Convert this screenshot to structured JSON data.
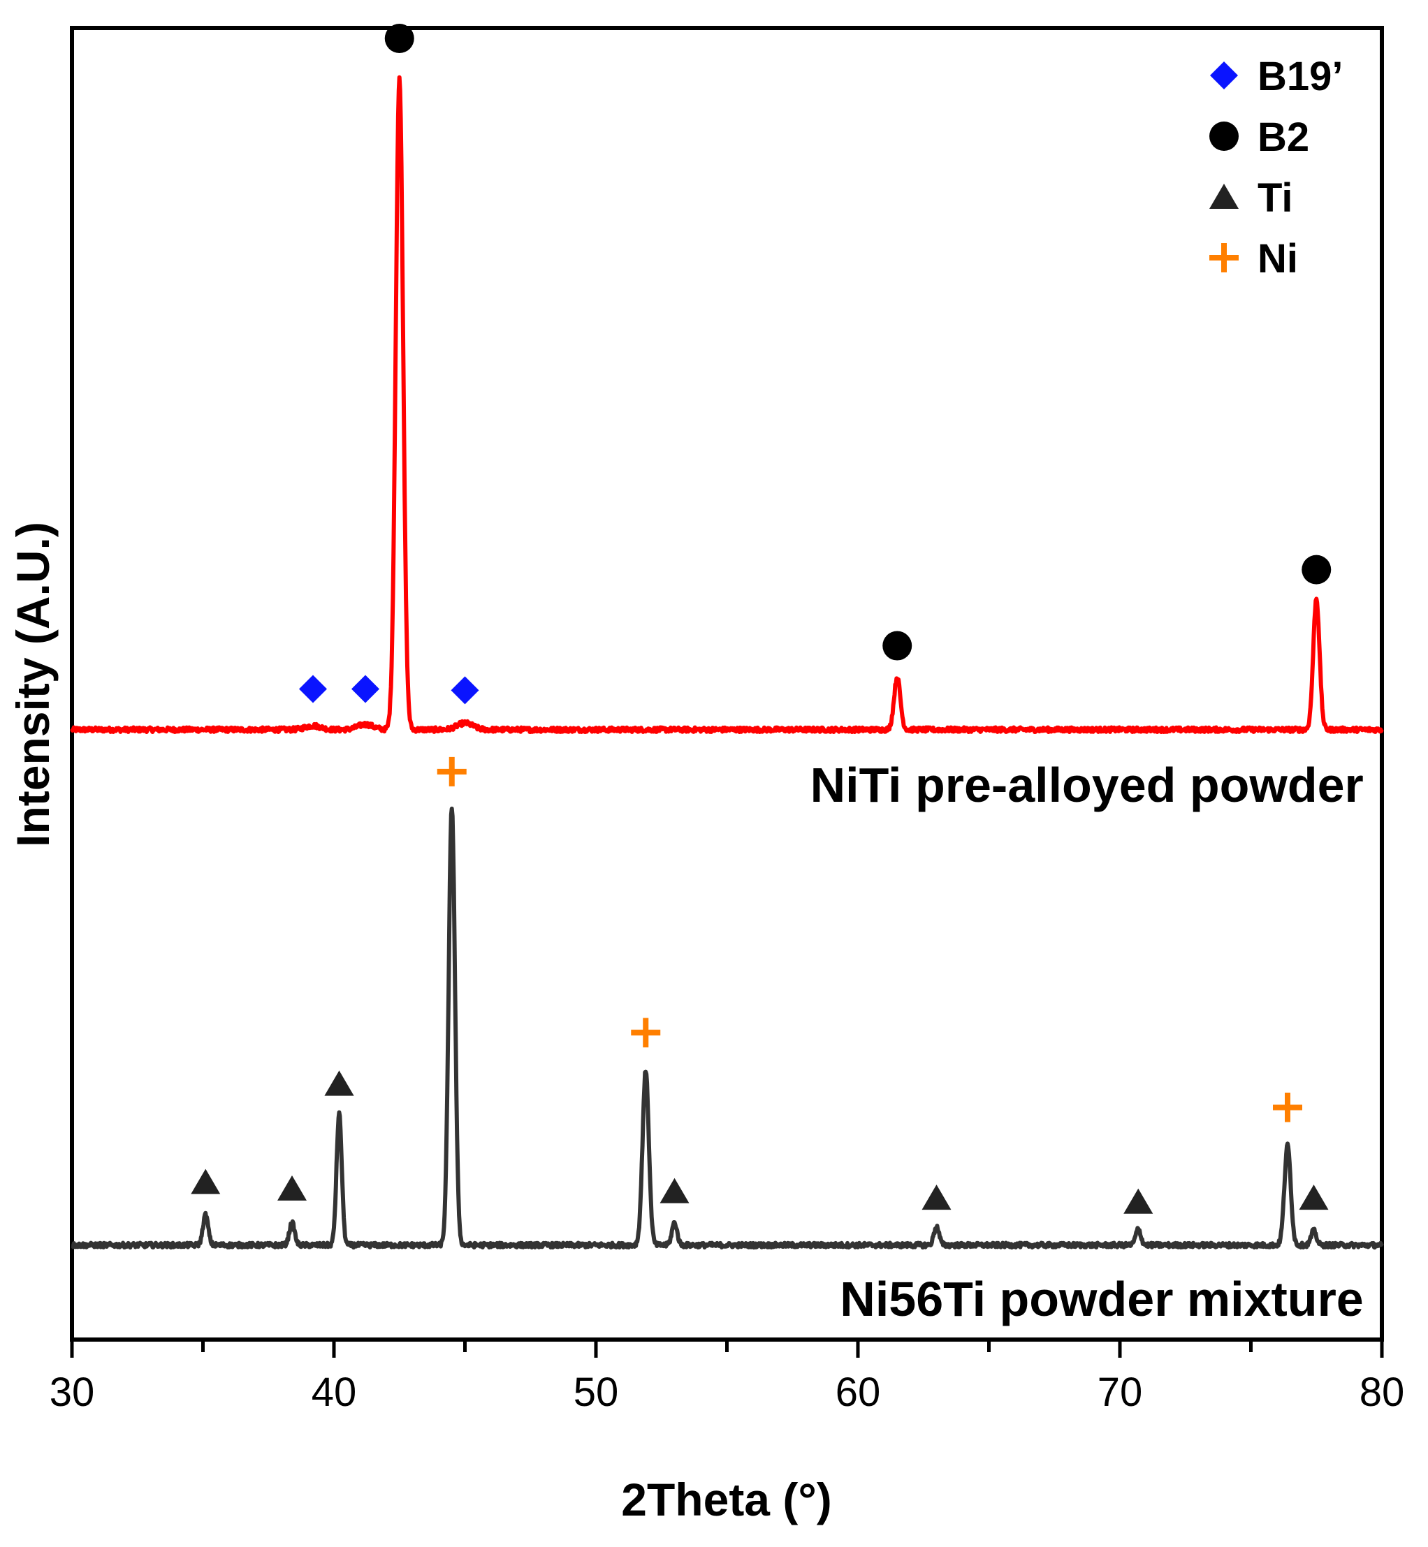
{
  "chart_data": {
    "type": "line",
    "title": "",
    "xlabel": "2Theta (°)",
    "ylabel": "Intensity (A.U.)",
    "xlim": [
      30,
      80
    ],
    "ylim": [
      0,
      100
    ],
    "x_ticks": [
      30,
      40,
      50,
      60,
      70,
      80
    ],
    "x_tick_labels": [
      "30",
      "40",
      "50",
      "60",
      "70",
      "80"
    ],
    "x_minor_ticks": [
      35,
      45,
      55,
      65,
      75
    ],
    "series": [
      {
        "name": "NiTi pre-alloyed powder",
        "color": "#ff0000",
        "baseline": 46.5,
        "peaks": [
          {
            "x": 39.2,
            "h": 0.3,
            "w": 0.3
          },
          {
            "x": 41.2,
            "h": 0.4,
            "w": 0.3
          },
          {
            "x": 42.5,
            "h": 49.7,
            "w": 0.14
          },
          {
            "x": 45.0,
            "h": 0.5,
            "w": 0.3
          },
          {
            "x": 61.5,
            "h": 4.0,
            "w": 0.12
          },
          {
            "x": 77.5,
            "h": 10.0,
            "w": 0.12
          }
        ]
      },
      {
        "name": "Ni56Ti powder mixture",
        "color": "#333333",
        "baseline": 7.2,
        "peaks": [
          {
            "x": 35.1,
            "h": 2.3,
            "w": 0.1
          },
          {
            "x": 38.4,
            "h": 1.7,
            "w": 0.1
          },
          {
            "x": 40.2,
            "h": 10.0,
            "w": 0.1
          },
          {
            "x": 44.5,
            "h": 33.4,
            "w": 0.12
          },
          {
            "x": 51.9,
            "h": 13.3,
            "w": 0.12
          },
          {
            "x": 53.0,
            "h": 1.7,
            "w": 0.1
          },
          {
            "x": 63.0,
            "h": 1.4,
            "w": 0.1
          },
          {
            "x": 70.7,
            "h": 1.2,
            "w": 0.1
          },
          {
            "x": 76.4,
            "h": 7.6,
            "w": 0.12
          },
          {
            "x": 77.4,
            "h": 1.1,
            "w": 0.1
          }
        ]
      }
    ],
    "phase_markers": [
      {
        "phase": "B19’",
        "symbol": "diamond",
        "x": 39.2,
        "y": 49.6
      },
      {
        "phase": "B19’",
        "symbol": "diamond",
        "x": 41.2,
        "y": 49.6
      },
      {
        "phase": "B19’",
        "symbol": "diamond",
        "x": 45.0,
        "y": 49.5
      },
      {
        "phase": "B2",
        "symbol": "circle",
        "x": 42.5,
        "y": 99.2
      },
      {
        "phase": "B2",
        "symbol": "circle",
        "x": 61.5,
        "y": 52.9
      },
      {
        "phase": "B2",
        "symbol": "circle",
        "x": 77.5,
        "y": 58.7
      },
      {
        "phase": "Ni",
        "symbol": "plus",
        "x": 44.5,
        "y": 43.3
      },
      {
        "phase": "Ni",
        "symbol": "plus",
        "x": 51.9,
        "y": 23.4
      },
      {
        "phase": "Ni",
        "symbol": "plus",
        "x": 76.4,
        "y": 17.7
      },
      {
        "phase": "Ti",
        "symbol": "triangle",
        "x": 35.1,
        "y": 12.0
      },
      {
        "phase": "Ti",
        "symbol": "triangle",
        "x": 38.4,
        "y": 11.5
      },
      {
        "phase": "Ti",
        "symbol": "triangle",
        "x": 40.2,
        "y": 19.5
      },
      {
        "phase": "Ti",
        "symbol": "triangle",
        "x": 53.0,
        "y": 11.3
      },
      {
        "phase": "Ti",
        "symbol": "triangle",
        "x": 63.0,
        "y": 10.8
      },
      {
        "phase": "Ti",
        "symbol": "triangle",
        "x": 70.7,
        "y": 10.5
      },
      {
        "phase": "Ti",
        "symbol": "triangle",
        "x": 77.4,
        "y": 10.8
      }
    ],
    "legend": {
      "position": "top-right",
      "entries": [
        {
          "label": "B19’",
          "symbol": "diamond",
          "color": "#0a14ff"
        },
        {
          "label": "B2",
          "symbol": "circle",
          "color": "#000000"
        },
        {
          "label": "Ti",
          "symbol": "triangle",
          "color": "#222222"
        },
        {
          "label": "Ni",
          "symbol": "plus",
          "color": "#ff7f00"
        }
      ]
    },
    "annotations": [
      {
        "text": "NiTi pre-alloyed powder",
        "x": 79.3,
        "y": 41.0
      },
      {
        "text": "Ni56Ti powder mixture",
        "x": 79.3,
        "y": 1.8
      }
    ],
    "colors": {
      "B19’": "#0a14ff",
      "B2": "#000000",
      "Ti": "#222222",
      "Ni": "#ff7f00"
    }
  }
}
